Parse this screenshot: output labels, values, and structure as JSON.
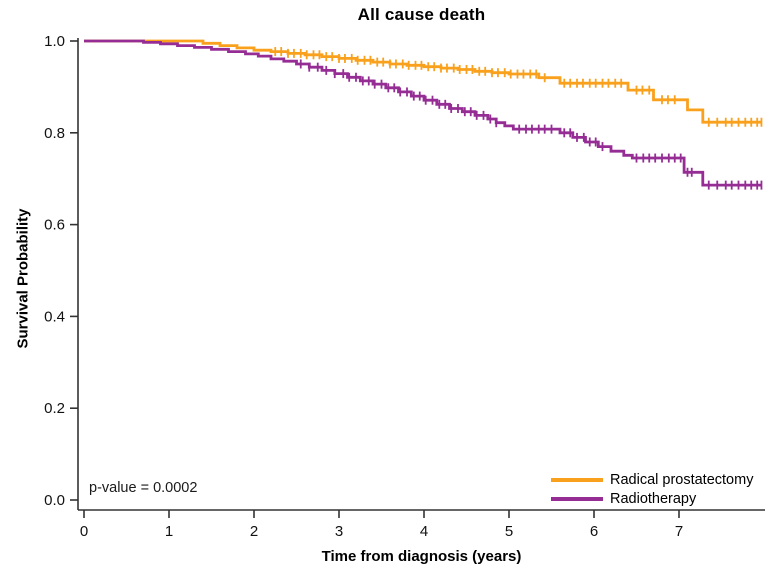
{
  "chart_data": {
    "type": "line",
    "subtype": "kaplan-meier-step",
    "title": "All cause death",
    "xlabel": "Time from diagnosis (years)",
    "ylabel": "Survival Probability",
    "annotation": "p-value = 0.0002",
    "xlim": [
      0,
      8.1
    ],
    "ylim": [
      0.0,
      1.0
    ],
    "xticks": [
      0,
      1,
      2,
      3,
      4,
      5,
      6,
      7
    ],
    "yticks": [
      0.0,
      0.2,
      0.4,
      0.6,
      0.8,
      1.0
    ],
    "grid": false,
    "legend_position": "bottom-right",
    "axis_color": "#333333",
    "series": [
      {
        "name": "Radical prostatectomy",
        "color": "#F9A11D",
        "end_time": 7.97,
        "final_survival": 0.823,
        "steps": [
          [
            0,
            1.0
          ],
          [
            1.4,
            0.995
          ],
          [
            1.6,
            0.99
          ],
          [
            1.8,
            0.985
          ],
          [
            2.0,
            0.98
          ],
          [
            2.2,
            0.977
          ],
          [
            2.4,
            0.973
          ],
          [
            2.6,
            0.97
          ],
          [
            2.8,
            0.966
          ],
          [
            3.0,
            0.962
          ],
          [
            3.2,
            0.958
          ],
          [
            3.4,
            0.954
          ],
          [
            3.6,
            0.95
          ],
          [
            3.8,
            0.947
          ],
          [
            4.0,
            0.944
          ],
          [
            4.2,
            0.941
          ],
          [
            4.4,
            0.938
          ],
          [
            4.6,
            0.934
          ],
          [
            4.8,
            0.931
          ],
          [
            5.0,
            0.928
          ],
          [
            5.35,
            0.92
          ],
          [
            5.6,
            0.908
          ],
          [
            6.4,
            0.893
          ],
          [
            6.7,
            0.872
          ],
          [
            7.1,
            0.85
          ],
          [
            7.28,
            0.823
          ]
        ],
        "censor_times": [
          2.25,
          2.32,
          2.4,
          2.47,
          2.55,
          2.62,
          2.7,
          2.77,
          2.85,
          2.92,
          3.0,
          3.07,
          3.15,
          3.22,
          3.3,
          3.37,
          3.45,
          3.52,
          3.6,
          3.67,
          3.75,
          3.82,
          3.9,
          3.97,
          4.05,
          4.12,
          4.2,
          4.27,
          4.35,
          4.42,
          4.5,
          4.57,
          4.65,
          4.72,
          4.8,
          4.87,
          4.95,
          5.02,
          5.1,
          5.17,
          5.25,
          5.32,
          5.42,
          5.65,
          5.72,
          5.8,
          5.87,
          5.95,
          6.02,
          6.1,
          6.17,
          6.25,
          6.32,
          6.5,
          6.57,
          6.65,
          6.8,
          6.87,
          6.95,
          7.35,
          7.45,
          7.55,
          7.62,
          7.7,
          7.78,
          7.85,
          7.92,
          7.97
        ]
      },
      {
        "name": "Radiotherapy",
        "color": "#952D95",
        "end_time": 7.97,
        "final_survival": 0.686,
        "steps": [
          [
            0,
            1.0
          ],
          [
            0.7,
            0.997
          ],
          [
            0.9,
            0.994
          ],
          [
            1.1,
            0.99
          ],
          [
            1.3,
            0.986
          ],
          [
            1.5,
            0.982
          ],
          [
            1.7,
            0.977
          ],
          [
            1.9,
            0.972
          ],
          [
            2.05,
            0.967
          ],
          [
            2.2,
            0.961
          ],
          [
            2.35,
            0.956
          ],
          [
            2.5,
            0.95
          ],
          [
            2.65,
            0.943
          ],
          [
            2.8,
            0.936
          ],
          [
            2.95,
            0.929
          ],
          [
            3.1,
            0.921
          ],
          [
            3.25,
            0.913
          ],
          [
            3.4,
            0.906
          ],
          [
            3.55,
            0.898
          ],
          [
            3.7,
            0.889
          ],
          [
            3.85,
            0.88
          ],
          [
            4.0,
            0.871
          ],
          [
            4.15,
            0.862
          ],
          [
            4.3,
            0.853
          ],
          [
            4.45,
            0.846
          ],
          [
            4.6,
            0.838
          ],
          [
            4.75,
            0.83
          ],
          [
            4.85,
            0.822
          ],
          [
            4.95,
            0.815
          ],
          [
            5.05,
            0.808
          ],
          [
            5.6,
            0.8
          ],
          [
            5.75,
            0.79
          ],
          [
            5.9,
            0.78
          ],
          [
            6.05,
            0.77
          ],
          [
            6.2,
            0.76
          ],
          [
            6.35,
            0.751
          ],
          [
            6.45,
            0.745
          ],
          [
            7.06,
            0.714
          ],
          [
            7.28,
            0.686
          ]
        ],
        "censor_times": [
          2.55,
          2.65,
          2.75,
          2.85,
          2.95,
          3.05,
          3.12,
          3.2,
          3.28,
          3.35,
          3.42,
          3.5,
          3.58,
          3.65,
          3.72,
          3.8,
          3.88,
          3.95,
          4.02,
          4.1,
          4.18,
          4.25,
          4.32,
          4.4,
          4.48,
          4.55,
          4.62,
          4.7,
          4.78,
          4.85,
          5.12,
          5.2,
          5.27,
          5.35,
          5.42,
          5.5,
          5.65,
          5.72,
          5.8,
          5.88,
          5.95,
          6.02,
          6.1,
          6.5,
          6.58,
          6.65,
          6.72,
          6.8,
          6.88,
          6.95,
          7.02,
          7.1,
          7.15,
          7.35,
          7.45,
          7.55,
          7.62,
          7.7,
          7.78,
          7.85,
          7.92,
          7.97
        ]
      }
    ]
  }
}
